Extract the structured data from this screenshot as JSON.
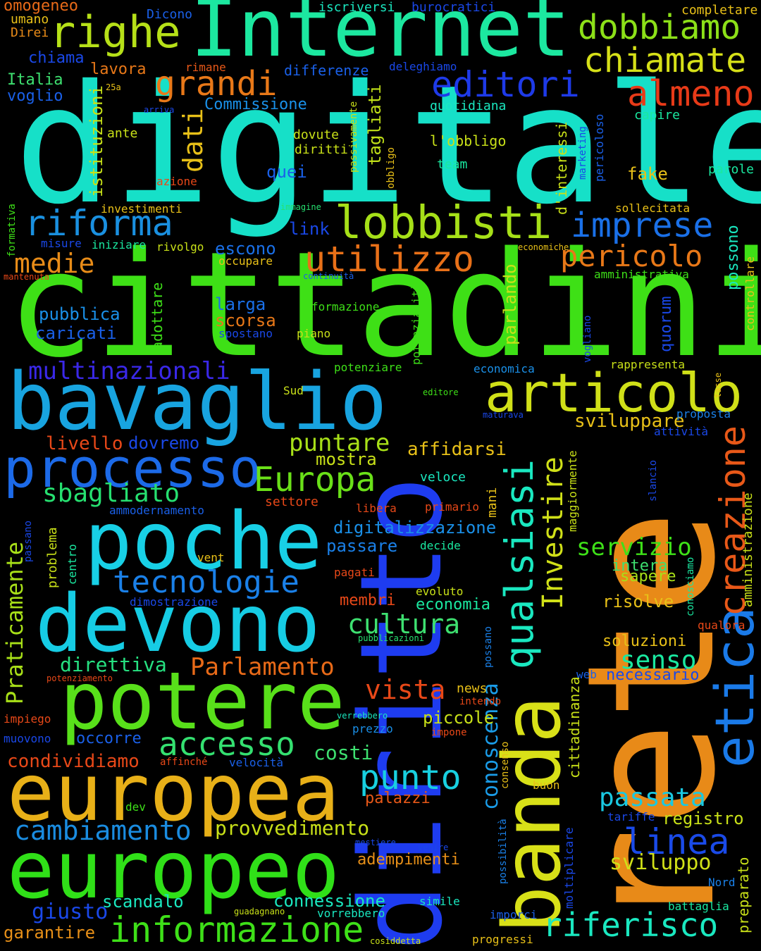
{
  "words": [
    {
      "text": "digitale",
      "color": "#16e0c8"
    },
    {
      "text": "cittadini",
      "color": "#3ee016"
    },
    {
      "text": "rete",
      "color": "#e88a18"
    },
    {
      "text": "diritto",
      "color": "#1e3cf0"
    },
    {
      "text": "Internet",
      "color": "#1ce8a0"
    },
    {
      "text": "bavaglio",
      "color": "#18a4e0"
    },
    {
      "text": "poche",
      "color": "#18d0e6"
    },
    {
      "text": "devono",
      "color": "#16cce4"
    },
    {
      "text": "potere",
      "color": "#58e01a"
    },
    {
      "text": "europea",
      "color": "#e8b018"
    },
    {
      "text": "europeo",
      "color": "#30e018"
    },
    {
      "text": "banda",
      "color": "#d8e018"
    },
    {
      "text": "articolo",
      "color": "#d0e018"
    },
    {
      "text": "processo",
      "color": "#1c6ae8"
    },
    {
      "text": "lobbisti",
      "color": "#a6e018"
    },
    {
      "text": "righe",
      "color": "#b6e018"
    },
    {
      "text": "dobbiamo",
      "color": "#8ce018"
    },
    {
      "text": "chiamate",
      "color": "#d6e018"
    },
    {
      "text": "grandi",
      "color": "#e87818"
    },
    {
      "text": "editori",
      "color": "#1e3ae8"
    },
    {
      "text": "almeno",
      "color": "#e83a18"
    },
    {
      "text": "riforma",
      "color": "#1a90e0"
    },
    {
      "text": "imprese",
      "color": "#1a70e8"
    },
    {
      "text": "utilizzo",
      "color": "#e87018"
    },
    {
      "text": "pericolo",
      "color": "#e87818"
    },
    {
      "text": "medie",
      "color": "#e88c18"
    },
    {
      "text": "etica",
      "color": "#1a7ae8"
    },
    {
      "text": "creazione",
      "color": "#e85818"
    },
    {
      "text": "qualsiasi",
      "color": "#1ae8c0"
    },
    {
      "text": "Investire",
      "color": "#d0e018"
    },
    {
      "text": "multinazionali",
      "color": "#3a28e8"
    },
    {
      "text": "tecnologie",
      "color": "#1a80e8"
    },
    {
      "text": "Europa",
      "color": "#6ae018"
    },
    {
      "text": "sbagliato",
      "color": "#26e070"
    },
    {
      "text": "accesso",
      "color": "#34e070"
    },
    {
      "text": "punto",
      "color": "#18d0e0"
    },
    {
      "text": "informazione",
      "color": "#3ee018"
    },
    {
      "text": "cambiamento",
      "color": "#1a8ce0"
    },
    {
      "text": "Parlamento",
      "color": "#e86a18"
    },
    {
      "text": "riferisco",
      "color": "#1ae8c0"
    },
    {
      "text": "linea",
      "color": "#1a4ae8"
    },
    {
      "text": "passata",
      "color": "#1ac8e0"
    },
    {
      "text": "cultura",
      "color": "#3ee070"
    },
    {
      "text": "conoscenza",
      "color": "#1a9ce8"
    },
    {
      "text": "Praticamente",
      "color": "#a8e018"
    },
    {
      "text": "servizio",
      "color": "#3ee018"
    },
    {
      "text": "senso",
      "color": "#1ae8a0"
    },
    {
      "text": "vista",
      "color": "#e84818"
    },
    {
      "text": "puntare",
      "color": "#a8e018"
    },
    {
      "text": "sviluppo",
      "color": "#d0e018"
    },
    {
      "text": "provvedimento",
      "color": "#c8e018"
    },
    {
      "text": "dati",
      "color": "#e8c018"
    },
    {
      "text": "istituzioni",
      "color": "#c6e018"
    },
    {
      "text": "tagliati",
      "color": "#c0e018"
    },
    {
      "text": "direttiva",
      "color": "#26e080"
    },
    {
      "text": "condividiamo",
      "color": "#e84818"
    },
    {
      "text": "giusto",
      "color": "#1a48e8"
    },
    {
      "text": "scandalo",
      "color": "#1ae8c0"
    },
    {
      "text": "connessione",
      "color": "#1ae8c0"
    },
    {
      "text": "garantire",
      "color": "#e89018"
    },
    {
      "text": "sviluppare",
      "color": "#e8c018"
    },
    {
      "text": "livello",
      "color": "#e84818"
    },
    {
      "text": "dovremo",
      "color": "#1a48e8"
    },
    {
      "text": "mostra",
      "color": "#c8e018"
    },
    {
      "text": "affidarsi",
      "color": "#e8c018"
    },
    {
      "text": "digitalizzazione",
      "color": "#1a90e8"
    },
    {
      "text": "passare",
      "color": "#1a80e8"
    },
    {
      "text": "economia",
      "color": "#1ae8a0"
    },
    {
      "text": "membri",
      "color": "#e84818"
    },
    {
      "text": "costi",
      "color": "#3ee070"
    },
    {
      "text": "piccole",
      "color": "#c8e018"
    },
    {
      "text": "occorre",
      "color": "#1a60e8"
    },
    {
      "text": "registro",
      "color": "#c8e018"
    },
    {
      "text": "soluzioni",
      "color": "#e8c018"
    },
    {
      "text": "necessario",
      "color": "#1a48e8"
    },
    {
      "text": "adempimenti",
      "color": "#e89018"
    },
    {
      "text": "palazzi",
      "color": "#e85818"
    },
    {
      "text": "risolve",
      "color": "#e8c018"
    },
    {
      "text": "intera",
      "color": "#3ee070"
    },
    {
      "text": "sapere",
      "color": "#a8e018"
    },
    {
      "text": "pubblica",
      "color": "#1a90e8"
    },
    {
      "text": "caricati",
      "color": "#1a60e8"
    },
    {
      "text": "larga",
      "color": "#1a70e8"
    },
    {
      "text": "scorsa",
      "color": "#e87818"
    },
    {
      "text": "escono",
      "color": "#1a70e8"
    },
    {
      "text": "link",
      "color": "#1a48e8"
    },
    {
      "text": "quei",
      "color": "#1a60e8"
    },
    {
      "text": "fake",
      "color": "#e8c018"
    },
    {
      "text": "parlando",
      "color": "#c8e018"
    },
    {
      "text": "quorum",
      "color": "#1a48e8"
    },
    {
      "text": "possono",
      "color": "#1ae8c0"
    },
    {
      "text": "lavora",
      "color": "#e87818"
    },
    {
      "text": "differenze",
      "color": "#1a60e8"
    },
    {
      "text": "Commissione",
      "color": "#1a90e8"
    },
    {
      "text": "chiama",
      "color": "#1a48e8"
    },
    {
      "text": "Italia",
      "color": "#3ee070"
    },
    {
      "text": "voglio",
      "color": "#1a60e8"
    },
    {
      "text": "iscriversi",
      "color": "#1ae8c0"
    },
    {
      "text": "burocratici",
      "color": "#1a48e8"
    },
    {
      "text": "completare",
      "color": "#e8c018"
    },
    {
      "text": "omogeneo",
      "color": "#e86a18"
    },
    {
      "text": "umano",
      "color": "#e8c018"
    },
    {
      "text": "Direi",
      "color": "#e88a18"
    },
    {
      "text": "Dicono",
      "color": "#1a60e8"
    },
    {
      "text": "rimane",
      "color": "#e85818"
    },
    {
      "text": "deleghiamo",
      "color": "#1a48e8"
    },
    {
      "text": "quotidiana",
      "color": "#1ae8c0"
    },
    {
      "text": "capire",
      "color": "#1ae8a0"
    },
    {
      "text": "arriva",
      "color": "#1a48e8"
    },
    {
      "text": "25a",
      "color": "#e8c018"
    },
    {
      "text": "ante",
      "color": "#c8e018"
    },
    {
      "text": "dovute",
      "color": "#c8e018"
    },
    {
      "text": "diritti",
      "color": "#c8e018"
    },
    {
      "text": "l'obbligo",
      "color": "#c8e018"
    },
    {
      "text": "team",
      "color": "#1ae8a0"
    },
    {
      "text": "parole",
      "color": "#1ae8a0"
    },
    {
      "text": "azione",
      "color": "#e84818"
    },
    {
      "text": "investimenti",
      "color": "#e8c018"
    },
    {
      "text": "immagine",
      "color": "#26e070"
    },
    {
      "text": "sollecitata",
      "color": "#e8c018"
    },
    {
      "text": "misure",
      "color": "#1a48e8"
    },
    {
      "text": "iniziare",
      "color": "#1ae8a0"
    },
    {
      "text": "rivolgo",
      "color": "#c8e018"
    },
    {
      "text": "economiche",
      "color": "#e8c018"
    },
    {
      "text": "occupare",
      "color": "#e8c018"
    },
    {
      "text": "mantenuta",
      "color": "#e84818"
    },
    {
      "text": "continuità",
      "color": "#1a60e8"
    },
    {
      "text": "amministrativa",
      "color": "#3ee018"
    },
    {
      "text": "formazione",
      "color": "#3ee018"
    },
    {
      "text": "piano",
      "color": "#c8e018"
    },
    {
      "text": "spostano",
      "color": "#1a48e8"
    },
    {
      "text": "potenziare",
      "color": "#3ee018"
    },
    {
      "text": "economica",
      "color": "#1a90e8"
    },
    {
      "text": "rappresenta",
      "color": "#c8e018"
    },
    {
      "text": "editore",
      "color": "#3ee018"
    },
    {
      "text": "Sud",
      "color": "#c8e018"
    },
    {
      "text": "maturava",
      "color": "#1a48e8"
    },
    {
      "text": "proposta",
      "color": "#1a80e8"
    },
    {
      "text": "attività",
      "color": "#1a48e8"
    },
    {
      "text": "veloce",
      "color": "#1ae8c0"
    },
    {
      "text": "libera",
      "color": "#e84818"
    },
    {
      "text": "primario",
      "color": "#e84818"
    },
    {
      "text": "settore",
      "color": "#e84818"
    },
    {
      "text": "ammodernamento",
      "color": "#1a60e8"
    },
    {
      "text": "decide",
      "color": "#1ae8a0"
    },
    {
      "text": "vent",
      "color": "#e8c018"
    },
    {
      "text": "pagati",
      "color": "#e84818"
    },
    {
      "text": "evoluto",
      "color": "#c8e018"
    },
    {
      "text": "dimostrazione",
      "color": "#1a48e8"
    },
    {
      "text": "pubblicazioni",
      "color": "#26e070"
    },
    {
      "text": "qualora",
      "color": "#e84818"
    },
    {
      "text": "web",
      "color": "#1a60e8"
    },
    {
      "text": "news",
      "color": "#e8c018"
    },
    {
      "text": "intendo",
      "color": "#e84818"
    },
    {
      "text": "verrebbero",
      "color": "#1ae8c0"
    },
    {
      "text": "prezzo",
      "color": "#1a90e8"
    },
    {
      "text": "impone",
      "color": "#e84818"
    },
    {
      "text": "potenziamento",
      "color": "#e84818"
    },
    {
      "text": "impiego",
      "color": "#e84818"
    },
    {
      "text": "muovono",
      "color": "#1a48e8"
    },
    {
      "text": "affinché",
      "color": "#e84818"
    },
    {
      "text": "velocità",
      "color": "#1a60e8"
    },
    {
      "text": "buon",
      "color": "#e8c018"
    },
    {
      "text": "dev",
      "color": "#3ee018"
    },
    {
      "text": "tariffe",
      "color": "#1a48e8"
    },
    {
      "text": "mestiere",
      "color": "#1a48e8"
    },
    {
      "text": "venire",
      "color": "#1a48e8"
    },
    {
      "text": "Nord",
      "color": "#1a80e8"
    },
    {
      "text": "simile",
      "color": "#1ae8c0"
    },
    {
      "text": "battaglia",
      "color": "#1ae8a0"
    },
    {
      "text": "imporci",
      "color": "#1a60e8"
    },
    {
      "text": "guadagnano",
      "color": "#c8e018"
    },
    {
      "text": "vorrebbero",
      "color": "#1ae8c0"
    },
    {
      "text": "progressi",
      "color": "#e8c018"
    },
    {
      "text": "cosiddetta",
      "color": "#c8e018"
    },
    {
      "text": "formativa",
      "color": "#3ee018"
    },
    {
      "text": "controllare",
      "color": "#e8c018"
    },
    {
      "text": "tasse",
      "color": "#e8c018"
    },
    {
      "text": "adottare",
      "color": "#3ee018"
    },
    {
      "text": "passivamente",
      "color": "#c8e018"
    },
    {
      "text": "obbligo",
      "color": "#e8c018"
    },
    {
      "text": "d'interessi",
      "color": "#c8e018"
    },
    {
      "text": "marketing",
      "color": "#1a48e8"
    },
    {
      "text": "pericoloso",
      "color": "#1a60e8"
    },
    {
      "text": "potenzialità",
      "color": "#3ee018"
    },
    {
      "text": "vogliano",
      "color": "#1a48e8"
    },
    {
      "text": "maggiormente",
      "color": "#c8e018"
    },
    {
      "text": "slancio",
      "color": "#1a48e8"
    },
    {
      "text": "amministrazione",
      "color": "#c8e018"
    },
    {
      "text": "conosciamo",
      "color": "#1ae8a0"
    },
    {
      "text": "mani",
      "color": "#e8c018"
    },
    {
      "text": "problema",
      "color": "#c8e018"
    },
    {
      "text": "passano",
      "color": "#1a48e8"
    },
    {
      "text": "centro",
      "color": "#1ae8a0"
    },
    {
      "text": "possano",
      "color": "#1a80e8"
    },
    {
      "text": "consenso",
      "color": "#e8c018"
    },
    {
      "text": "cittadinanza",
      "color": "#c8e018"
    },
    {
      "text": "possibilità",
      "color": "#1a80e8"
    },
    {
      "text": "moltiplicare",
      "color": "#1a48e8"
    },
    {
      "text": "preparato",
      "color": "#c8e018"
    }
  ]
}
